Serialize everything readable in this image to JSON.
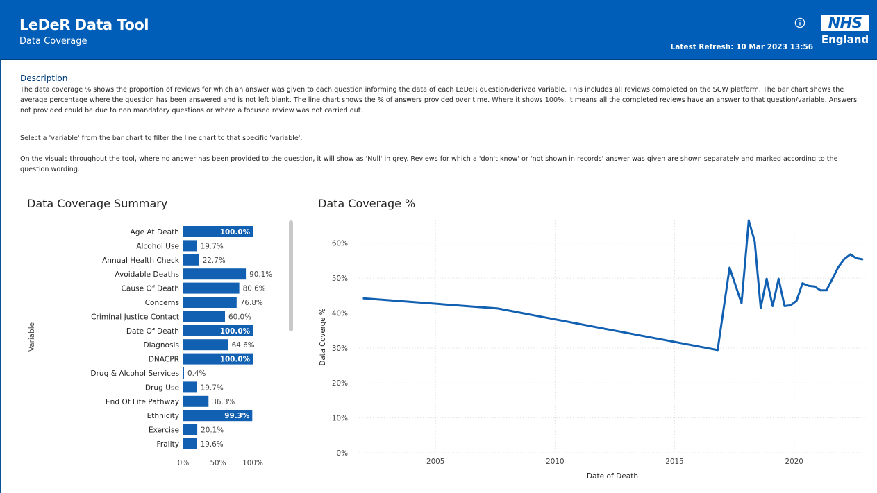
{
  "header": {
    "app_title": "LeDeR Data Tool",
    "page_subtitle": "Data Coverage",
    "refresh_label": "Latest Refresh:",
    "refresh_value": "10 Mar 2023 13:56",
    "logo_text": "NHS",
    "logo_subtext": "England",
    "brand_color": "#005eb8",
    "info_icon": "info-circle-icon"
  },
  "description": {
    "heading": "Description",
    "paragraphs": [
      "The data coverage % shows the proportion of reviews for which an answer was given to each question informing the data of each LeDeR question/derived variable. This includes all reviews completed on the SCW platform. The bar chart shows the average percentage where the question has been answered and is not left blank. The line chart shows the % of answers provided over time. Where it shows 100%, it means all the completed reviews have an answer to that question/variable. Answers not provided could be due to non mandatory questions or where a focused review was not carried out.",
      "Select a 'variable' from the bar chart to filter the line chart to that specific 'variable'.",
      "On the visuals throughout the tool, where no answer has been provided to the question, it will show as 'Null' in grey. Reviews for which a 'don't know' or 'not shown in records' answer was given are shown separately and marked according to the question wording."
    ]
  },
  "bar_chart": {
    "title": "Data Coverage Summary",
    "ylabel": "Variable",
    "x_ticks": [
      "0%",
      "50%",
      "100%"
    ],
    "bar_color": "#1260b2",
    "scroll_color": "#c8c8c8",
    "chart_data": {
      "type": "bar",
      "orientation": "horizontal",
      "categories": [
        "Age At Death",
        "Alcohol Use",
        "Annual Health Check",
        "Avoidable Deaths",
        "Cause Of Death",
        "Concerns",
        "Criminal Justice Contact",
        "Date Of Death",
        "Diagnosis",
        "DNACPR",
        "Drug & Alcohol Services",
        "Drug Use",
        "End Of Life Pathway",
        "Ethnicity",
        "Exercise",
        "Frailty"
      ],
      "values": [
        100.0,
        19.7,
        22.7,
        90.1,
        80.6,
        76.8,
        60.0,
        100.0,
        64.6,
        100.0,
        0.4,
        19.7,
        36.3,
        99.3,
        20.1,
        19.6
      ],
      "labels": [
        "100.0%",
        "19.7%",
        "22.7%",
        "90.1%",
        "80.6%",
        "76.8%",
        "60.0%",
        "100.0%",
        "64.6%",
        "100.0%",
        "0.4%",
        "19.7%",
        "36.3%",
        "99.3%",
        "20.1%",
        "19.6%"
      ],
      "xlim": [
        0,
        100
      ]
    }
  },
  "line_chart": {
    "title": "Data Coverage %",
    "xlabel": "Date of Death",
    "ylabel": "Data Coverge %",
    "y_ticks": [
      {
        "v": 0,
        "label": "0%"
      },
      {
        "v": 10,
        "label": "10%"
      },
      {
        "v": 20,
        "label": "20%"
      },
      {
        "v": 30,
        "label": "30%"
      },
      {
        "v": 40,
        "label": "40%"
      },
      {
        "v": 50,
        "label": "50%"
      },
      {
        "v": 60,
        "label": "60%"
      }
    ],
    "x_ticks": [
      {
        "v": 2005,
        "label": "2005"
      },
      {
        "v": 2010,
        "label": "2010"
      },
      {
        "v": 2015,
        "label": "2015"
      },
      {
        "v": 2020,
        "label": "2020"
      }
    ],
    "line_color": "#1260b2",
    "chart_data": {
      "type": "line",
      "x": [
        2002.0,
        2007.6,
        2016.8,
        2017.3,
        2017.8,
        2018.1,
        2018.35,
        2018.6,
        2018.85,
        2019.1,
        2019.35,
        2019.6,
        2019.85,
        2020.1,
        2020.35,
        2020.6,
        2020.85,
        2021.1,
        2021.35,
        2021.6,
        2021.85,
        2022.1,
        2022.35,
        2022.6,
        2022.85
      ],
      "y": [
        44.2,
        41.3,
        29.4,
        53.0,
        42.8,
        66.5,
        60.5,
        41.5,
        49.8,
        42.0,
        49.8,
        42.0,
        42.2,
        43.5,
        48.5,
        47.8,
        47.6,
        46.5,
        46.5,
        49.8,
        53.2,
        55.5,
        56.8,
        55.7,
        55.4
      ],
      "xlim": [
        2001.8,
        2023.0
      ],
      "ylim": [
        0,
        66.5
      ]
    }
  }
}
